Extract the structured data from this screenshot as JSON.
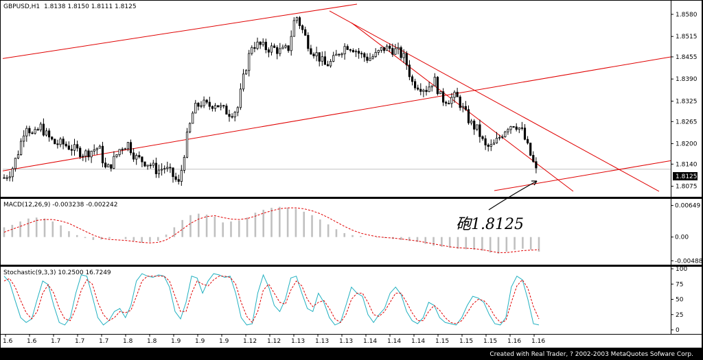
{
  "chart_data": [
    {
      "type": "candlestick",
      "title": "GBPUSD,H1",
      "ohlc_header": "1.8138 1.8150 1.8111 1.8125",
      "ylim": [
        1.805,
        1.861
      ],
      "yticks": [
        "1.8580",
        "1.8515",
        "1.8455",
        "1.8390",
        "1.8325",
        "1.8265",
        "1.8200",
        "1.8140",
        "1.8075"
      ],
      "current_price": "1.8125",
      "annotation": "砲1.8125",
      "series": [
        {
          "name": "price_path",
          "values": [
            1.81,
            1.812,
            1.818,
            1.826,
            1.822,
            1.825,
            1.822,
            1.82,
            1.82,
            1.819,
            1.818,
            1.817,
            1.818,
            1.819,
            1.812,
            1.815,
            1.819,
            1.82,
            1.816,
            1.815,
            1.814,
            1.812,
            1.813,
            1.811,
            1.808,
            1.821,
            1.83,
            1.832,
            1.831,
            1.832,
            1.83,
            1.829,
            1.83,
            1.841,
            1.849,
            1.849,
            1.848,
            1.848,
            1.847,
            1.848,
            1.858,
            1.853,
            1.848,
            1.846,
            1.843,
            1.844,
            1.847,
            1.849,
            1.848,
            1.846,
            1.845,
            1.846,
            1.848,
            1.848,
            1.847,
            1.845,
            1.838,
            1.837,
            1.836,
            1.839,
            1.833,
            1.833,
            1.834,
            1.83,
            1.826,
            1.824,
            1.819,
            1.819,
            1.822,
            1.825,
            1.826,
            1.824,
            1.818,
            1.812
          ]
        }
      ]
    },
    {
      "type": "histogram",
      "title": "MACD(12,26,9)  -0.003238  -0.002242",
      "yticks": [
        "0.00649",
        "0.00",
        "-0.00488"
      ],
      "ylim": [
        -0.0054,
        0.007
      ],
      "series": [
        {
          "name": "MACD",
          "values": [
            0.002,
            0.0025,
            0.0032,
            0.0038,
            0.004,
            0.0038,
            0.0032,
            0.0024,
            0.0012,
            0.0004,
            -0.0002,
            -0.0006,
            -0.0005,
            -0.0003,
            0.0,
            -0.0004,
            -0.0008,
            -0.0012,
            -0.001,
            -0.0008,
            0.0005,
            0.002,
            0.0035,
            0.0045,
            0.0048,
            0.0046,
            0.0042,
            0.003,
            0.0032,
            0.0034,
            0.004,
            0.005,
            0.0056,
            0.006,
            0.0062,
            0.006,
            0.0058,
            0.0052,
            0.0045,
            0.0036,
            0.0026,
            0.0016,
            0.0008,
            0.0004,
            0.0002,
            0.0,
            -0.0001,
            -0.0002,
            -0.0004,
            -0.0006,
            -0.0008,
            -0.001,
            -0.0014,
            -0.0018,
            -0.002,
            -0.0022,
            -0.0024,
            -0.0025,
            -0.0026,
            -0.0028,
            -0.0032,
            -0.0034,
            -0.003,
            -0.0026,
            -0.0024,
            -0.0026,
            -0.003
          ]
        },
        {
          "name": "Signal",
          "values": [
            0.001,
            0.0016,
            0.0022,
            0.0028,
            0.0034,
            0.0036,
            0.0036,
            0.0033,
            0.0028,
            0.002,
            0.0012,
            0.0004,
            -0.0002,
            -0.0005,
            -0.0006,
            -0.0007,
            -0.0009,
            -0.0011,
            -0.0012,
            -0.0011,
            -0.0006,
            0.0004,
            0.0016,
            0.0028,
            0.0037,
            0.0042,
            0.0044,
            0.004,
            0.0037,
            0.0036,
            0.0038,
            0.0043,
            0.0049,
            0.0054,
            0.0058,
            0.006,
            0.006,
            0.0058,
            0.0054,
            0.0048,
            0.004,
            0.0031,
            0.0022,
            0.0014,
            0.0008,
            0.0004,
            0.0001,
            -0.0001,
            -0.0002,
            -0.0004,
            -0.0006,
            -0.0008,
            -0.0011,
            -0.0014,
            -0.0017,
            -0.002,
            -0.0022,
            -0.0023,
            -0.0024,
            -0.0026,
            -0.0029,
            -0.0032,
            -0.0032,
            -0.003,
            -0.0028,
            -0.0027,
            -0.0026
          ]
        }
      ]
    },
    {
      "type": "line",
      "title": "Stochastic(9,3,3)  10.2500  16.7249",
      "ylim": [
        0,
        100
      ],
      "yticks": [
        "100",
        "75",
        "50",
        "25",
        "0"
      ],
      "series": [
        {
          "name": "%K",
          "values": [
            88,
            78,
            48,
            20,
            12,
            18,
            50,
            80,
            74,
            40,
            12,
            8,
            20,
            60,
            90,
            88,
            55,
            20,
            8,
            15,
            30,
            35,
            20,
            40,
            80,
            92,
            88,
            86,
            90,
            88,
            70,
            30,
            18,
            45,
            88,
            85,
            60,
            80,
            92,
            90,
            86,
            88,
            60,
            20,
            8,
            10,
            60,
            90,
            70,
            40,
            30,
            50,
            85,
            88,
            60,
            35,
            30,
            60,
            45,
            20,
            8,
            12,
            40,
            70,
            60,
            55,
            25,
            12,
            25,
            35,
            60,
            70,
            58,
            30,
            15,
            10,
            20,
            45,
            40,
            20,
            12,
            10,
            8,
            20,
            40,
            55,
            52,
            45,
            25,
            10,
            8,
            20,
            70,
            88,
            82,
            50,
            10,
            8
          ]
        },
        {
          "name": "%D",
          "values": [
            80,
            84,
            70,
            48,
            28,
            18,
            30,
            60,
            74,
            60,
            35,
            18,
            15,
            35,
            65,
            82,
            75,
            45,
            25,
            15,
            20,
            30,
            28,
            32,
            55,
            80,
            88,
            88,
            88,
            88,
            80,
            55,
            30,
            30,
            60,
            80,
            75,
            72,
            82,
            88,
            88,
            86,
            75,
            45,
            22,
            12,
            30,
            65,
            75,
            60,
            45,
            42,
            65,
            80,
            72,
            50,
            38,
            45,
            48,
            35,
            18,
            12,
            25,
            50,
            60,
            60,
            45,
            25,
            22,
            30,
            45,
            60,
            60,
            45,
            28,
            15,
            15,
            30,
            40,
            32,
            20,
            12,
            10,
            15,
            28,
            42,
            50,
            48,
            38,
            22,
            12,
            15,
            45,
            72,
            82,
            68,
            38,
            18
          ]
        }
      ]
    }
  ],
  "xticks": [
    "1.6",
    "1.6",
    "1.7",
    "1.7",
    "1.7",
    "1.8",
    "1.8",
    "1.9",
    "1.9",
    "1.9",
    "1.12",
    "1.12",
    "1.13",
    "1.13",
    "1.13",
    "1.14",
    "1.14",
    "1.14",
    "1.15",
    "1.15",
    "1.15",
    "1.16",
    "1.16"
  ],
  "footer": "Created with Real Trader, ? 2002-2003 MetaQuotes Sofware Corp.",
  "colors": {
    "candle": "#000000",
    "trend": "#e00000",
    "macd_hist": "#c0c0c0",
    "signal": "#e00000",
    "stoch_k": "#20b0c0",
    "stoch_d": "#e00000"
  }
}
